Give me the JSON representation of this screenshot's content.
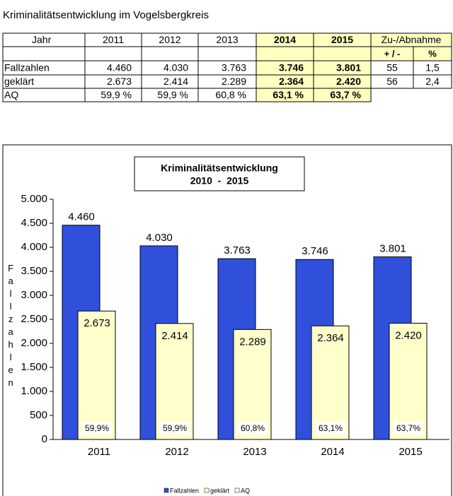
{
  "title": "Kriminalitätsentwicklung im Vogelsbergkreis",
  "table": {
    "header": [
      "Jahr",
      "2011",
      "2012",
      "2013",
      "2014",
      "2015",
      "Zu-/Abnahme"
    ],
    "subheader": [
      "+ / -",
      "%"
    ],
    "rows": [
      [
        "Fallzahlen",
        "4.460",
        "4.030",
        "3.763",
        "3.746",
        "3.801",
        "55",
        "1,5"
      ],
      [
        "geklärt",
        "2.673",
        "2.414",
        "2.289",
        "2.364",
        "2.420",
        "56",
        "2,4"
      ],
      [
        "AQ",
        "59,9 %",
        "59,9 %",
        "60,8 %",
        "63,1 %",
        "63,7 %"
      ]
    ]
  },
  "chart_data": {
    "type": "bar",
    "title": "Kriminalitätsentwicklung",
    "subtitle": "2010  -  2015",
    "y_label": "Fallzahlen",
    "categories": [
      "2011",
      "2012",
      "2013",
      "2014",
      "2015"
    ],
    "series": [
      {
        "name": "Fallzahlen",
        "color": "#3050dc",
        "values": [
          4460,
          4030,
          3763,
          3746,
          3801
        ],
        "value_labels": [
          "4.460",
          "4.030",
          "3.763",
          "3.746",
          "3.801"
        ]
      },
      {
        "name": "geklärt",
        "color": "#ffffcc",
        "values": [
          2673,
          2414,
          2289,
          2364,
          2420
        ],
        "value_labels": [
          "2.673",
          "2.414",
          "2.289",
          "2.364",
          "2.420"
        ]
      },
      {
        "name": "AQ",
        "color": "#ffffff",
        "values": [
          59.9,
          59.9,
          60.8,
          63.1,
          63.7
        ],
        "value_labels": [
          "59,9%",
          "59,9%",
          "60,8%",
          "63,1%",
          "63,7%"
        ]
      }
    ],
    "ylim": [
      0,
      5000
    ],
    "yticks": [
      0,
      500,
      {
        "value": 1000,
        "label": "1.000"
      },
      {
        "value": 1500,
        "label": "1.500"
      },
      {
        "value": 2000,
        "label": "2.000"
      },
      {
        "value": 2500,
        "label": "2.500"
      },
      {
        "value": 3000,
        "label": "3.000"
      },
      {
        "value": 3500,
        "label": "3.500"
      },
      {
        "value": 4000,
        "label": "4.000"
      },
      {
        "value": 4500,
        "label": "4.500"
      },
      {
        "value": 5000,
        "label": "5.000"
      }
    ],
    "grid": false,
    "legend": "bottom"
  }
}
